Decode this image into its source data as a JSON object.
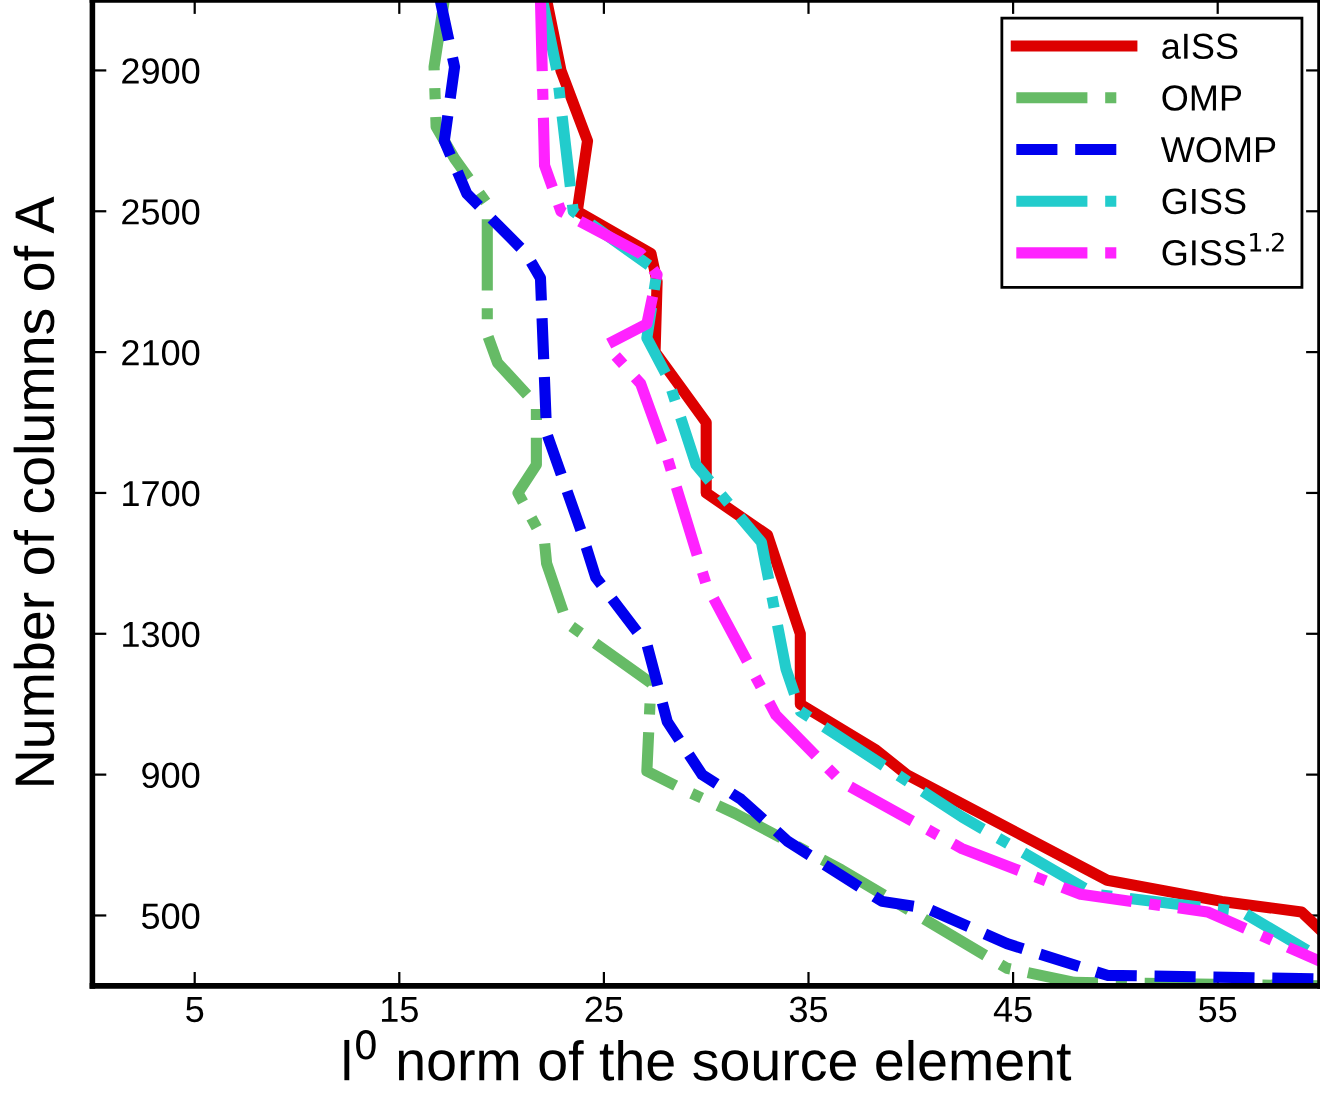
{
  "chart_data": {
    "type": "line",
    "xlabel": "l$^{0}$ norm of the source element",
    "ylabel": "Number of columns of A",
    "xlim": [
      0,
      60
    ],
    "xticks": [
      5,
      15,
      25,
      35,
      45,
      55
    ],
    "ylim": [
      300,
      3100
    ],
    "yticks": [
      500,
      900,
      1300,
      1700,
      2100,
      2500,
      2900
    ],
    "grid": false,
    "legend": "top right",
    "marker": "none",
    "series": [
      {
        "name": "aISS",
        "color": "#dd0000",
        "line_style": "solid",
        "x": [
          22.2,
          22.9,
          24.2,
          23.7,
          27.3,
          27.6,
          27.5,
          30.0,
          30.0,
          33.0,
          34.6,
          34.6,
          38.3,
          39.8,
          49.6,
          55.2,
          59.1,
          60
        ],
        "values": [
          3100,
          2900,
          2700,
          2500,
          2380,
          2300,
          2100,
          1900,
          1700,
          1580,
          1300,
          1100,
          970,
          900,
          600,
          540,
          510,
          460
        ]
      },
      {
        "name": "OMP",
        "color": "#66bb66",
        "line_style": "dashdot",
        "x": [
          17.2,
          16.7,
          16.8,
          17.7,
          19.3,
          19.3,
          19.8,
          21.7,
          21.7,
          20.8,
          22.1,
          22.2,
          23.2,
          27.3,
          27.1,
          28.8,
          31.4,
          36.6,
          44.7,
          48,
          60
        ],
        "values": [
          3100,
          2910,
          2740,
          2650,
          2520,
          2150,
          2070,
          1950,
          1780,
          1700,
          1560,
          1500,
          1330,
          1160,
          910,
          860,
          790,
          630,
          350,
          310,
          300
        ]
      },
      {
        "name": "WOMP",
        "color": "#0000ee",
        "line_style": "dashed",
        "x": [
          17.0,
          17.7,
          17.2,
          18.3,
          21.2,
          21.9,
          22.2,
          23.9,
          24.6,
          27.1,
          28.1,
          29.8,
          31.7,
          34.0,
          38.6,
          40.8,
          44.7,
          49.6,
          60
        ],
        "values": [
          3100,
          2910,
          2700,
          2550,
          2380,
          2310,
          1870,
          1590,
          1460,
          1270,
          1050,
          900,
          830,
          710,
          540,
          520,
          420,
          330,
          320
        ]
      },
      {
        "name": "GISS",
        "color": "#22cccc",
        "line_style": "dashdot",
        "x": [
          22.0,
          22.7,
          23.5,
          27.6,
          27.1,
          28.1,
          29.5,
          32.7,
          33.9,
          34.6,
          42.5,
          49.0,
          56.2,
          60
        ],
        "values": [
          3100,
          2900,
          2500,
          2330,
          2140,
          2030,
          1780,
          1560,
          1200,
          1080,
          780,
          560,
          510,
          380
        ]
      },
      {
        "name": "GISS$^{1.2}$",
        "color": "#ff22ff",
        "line_style": "dashdot",
        "x": [
          21.9,
          22.1,
          22.9,
          26.8,
          27.6,
          27.1,
          25.1,
          26.8,
          28.1,
          30.0,
          33.4,
          36.6,
          42.5,
          48.3,
          54.5,
          60
        ],
        "values": [
          3100,
          2630,
          2500,
          2380,
          2320,
          2180,
          2120,
          2010,
          1800,
          1440,
          1070,
          880,
          690,
          560,
          510,
          370
        ]
      }
    ]
  }
}
